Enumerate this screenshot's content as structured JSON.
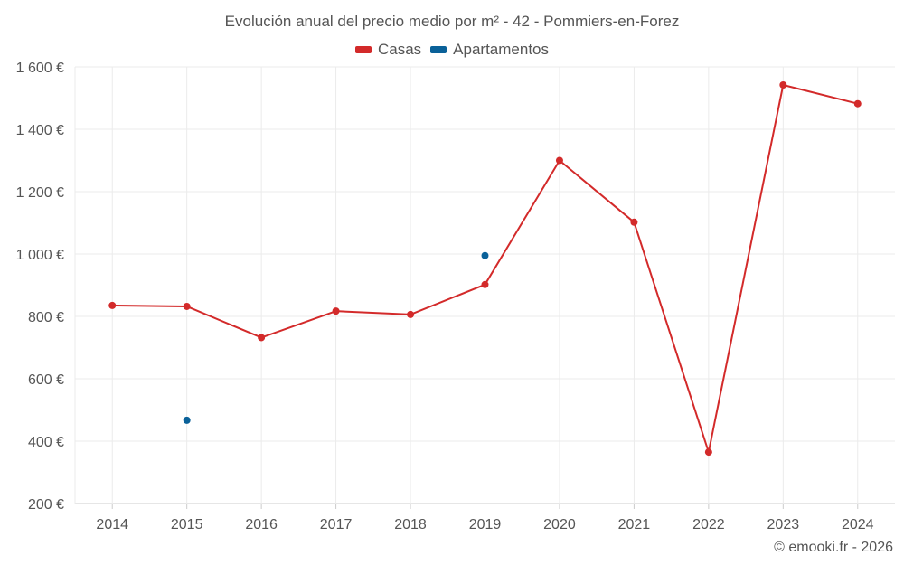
{
  "chart_data": {
    "type": "line",
    "title": "Evolución anual del precio medio por m² - 42 - Pommiers-en-Forez",
    "xlabel": "",
    "ylabel": "",
    "categories": [
      "2014",
      "2015",
      "2016",
      "2017",
      "2018",
      "2019",
      "2020",
      "2021",
      "2022",
      "2023",
      "2024"
    ],
    "ylim": [
      200,
      1600
    ],
    "yticks": [
      200,
      400,
      600,
      800,
      1000,
      1200,
      1400,
      1600
    ],
    "ytick_labels": [
      "200 €",
      "400 €",
      "600 €",
      "800 €",
      "1 000 €",
      "1 200 €",
      "1 400 €",
      "1 600 €"
    ],
    "grid": true,
    "legend_position": "top-center",
    "series": [
      {
        "name": "Casas",
        "color": "#d32a2a",
        "values": [
          835,
          832,
          732,
          817,
          806,
          902,
          1300,
          1102,
          365,
          1542,
          1482
        ]
      },
      {
        "name": "Apartamentos",
        "color": "#0a6199",
        "values": [
          null,
          467,
          null,
          null,
          null,
          995,
          null,
          null,
          null,
          null,
          null
        ]
      }
    ]
  },
  "credit": "© emooki.fr - 2026"
}
